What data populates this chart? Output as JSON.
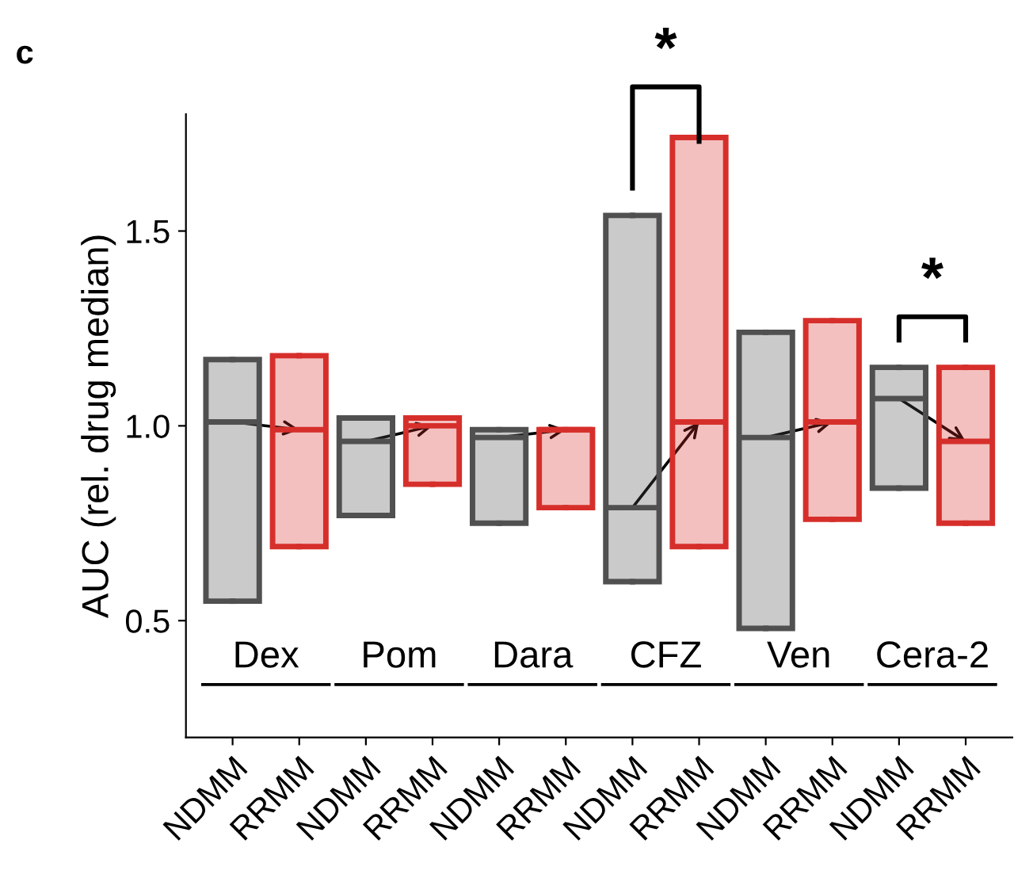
{
  "chart_data": {
    "type": "box",
    "title": "c",
    "ylabel": "AUC (rel. drug median)",
    "categories": [
      "NDMM",
      "RRMM",
      "NDMM",
      "RRMM",
      "NDMM",
      "RRMM",
      "NDMM",
      "RRMM",
      "NDMM",
      "RRMM",
      "NDMM",
      "RRMM"
    ],
    "boxes": [
      {
        "low": 0.55,
        "q1": 0.55,
        "median": 1.01,
        "q3": 1.17,
        "high": 1.17
      },
      {
        "low": 0.69,
        "q1": 0.69,
        "median": 0.99,
        "q3": 1.18,
        "high": 1.18
      },
      {
        "low": 0.77,
        "q1": 0.77,
        "median": 0.96,
        "q3": 1.02,
        "high": 1.02
      },
      {
        "low": 0.85,
        "q1": 0.85,
        "median": 1.0,
        "q3": 1.02,
        "high": 1.02
      },
      {
        "low": 0.75,
        "q1": 0.75,
        "median": 0.97,
        "q3": 0.99,
        "high": 0.99
      },
      {
        "low": 0.79,
        "q1": 0.79,
        "median": 0.99,
        "q3": 0.99,
        "high": 0.99
      },
      {
        "low": 0.6,
        "q1": 0.6,
        "median": 0.79,
        "q3": 1.54,
        "high": 1.54
      },
      {
        "low": 0.69,
        "q1": 0.69,
        "median": 1.01,
        "q3": 1.74,
        "high": 1.74
      },
      {
        "low": 0.48,
        "q1": 0.48,
        "median": 0.97,
        "q3": 1.24,
        "high": 1.24
      },
      {
        "low": 0.76,
        "q1": 0.76,
        "median": 1.01,
        "q3": 1.27,
        "high": 1.27
      },
      {
        "low": 0.84,
        "q1": 0.84,
        "median": 1.07,
        "q3": 1.15,
        "high": 1.15
      },
      {
        "low": 0.75,
        "q1": 0.75,
        "median": 0.96,
        "q3": 1.15,
        "high": 1.15
      }
    ],
    "colors": [
      "#505050",
      "#d62f2b",
      "#505050",
      "#d62f2b",
      "#505050",
      "#d62f2b",
      "#505050",
      "#d62f2b",
      "#505050",
      "#d62f2b",
      "#505050",
      "#d62f2b"
    ],
    "ylim": [
      0.2,
      1.8
    ],
    "yticks": [
      {
        "value": 0.5,
        "label": "0.5"
      },
      {
        "value": 1.0,
        "label": "1.0"
      },
      {
        "value": 1.5,
        "label": "1.5"
      }
    ],
    "grid": false,
    "annotations": [
      "Dex",
      "Pom",
      "Dara",
      "CFZ",
      "Ven",
      "Cera-2",
      "*",
      "*"
    ]
  }
}
